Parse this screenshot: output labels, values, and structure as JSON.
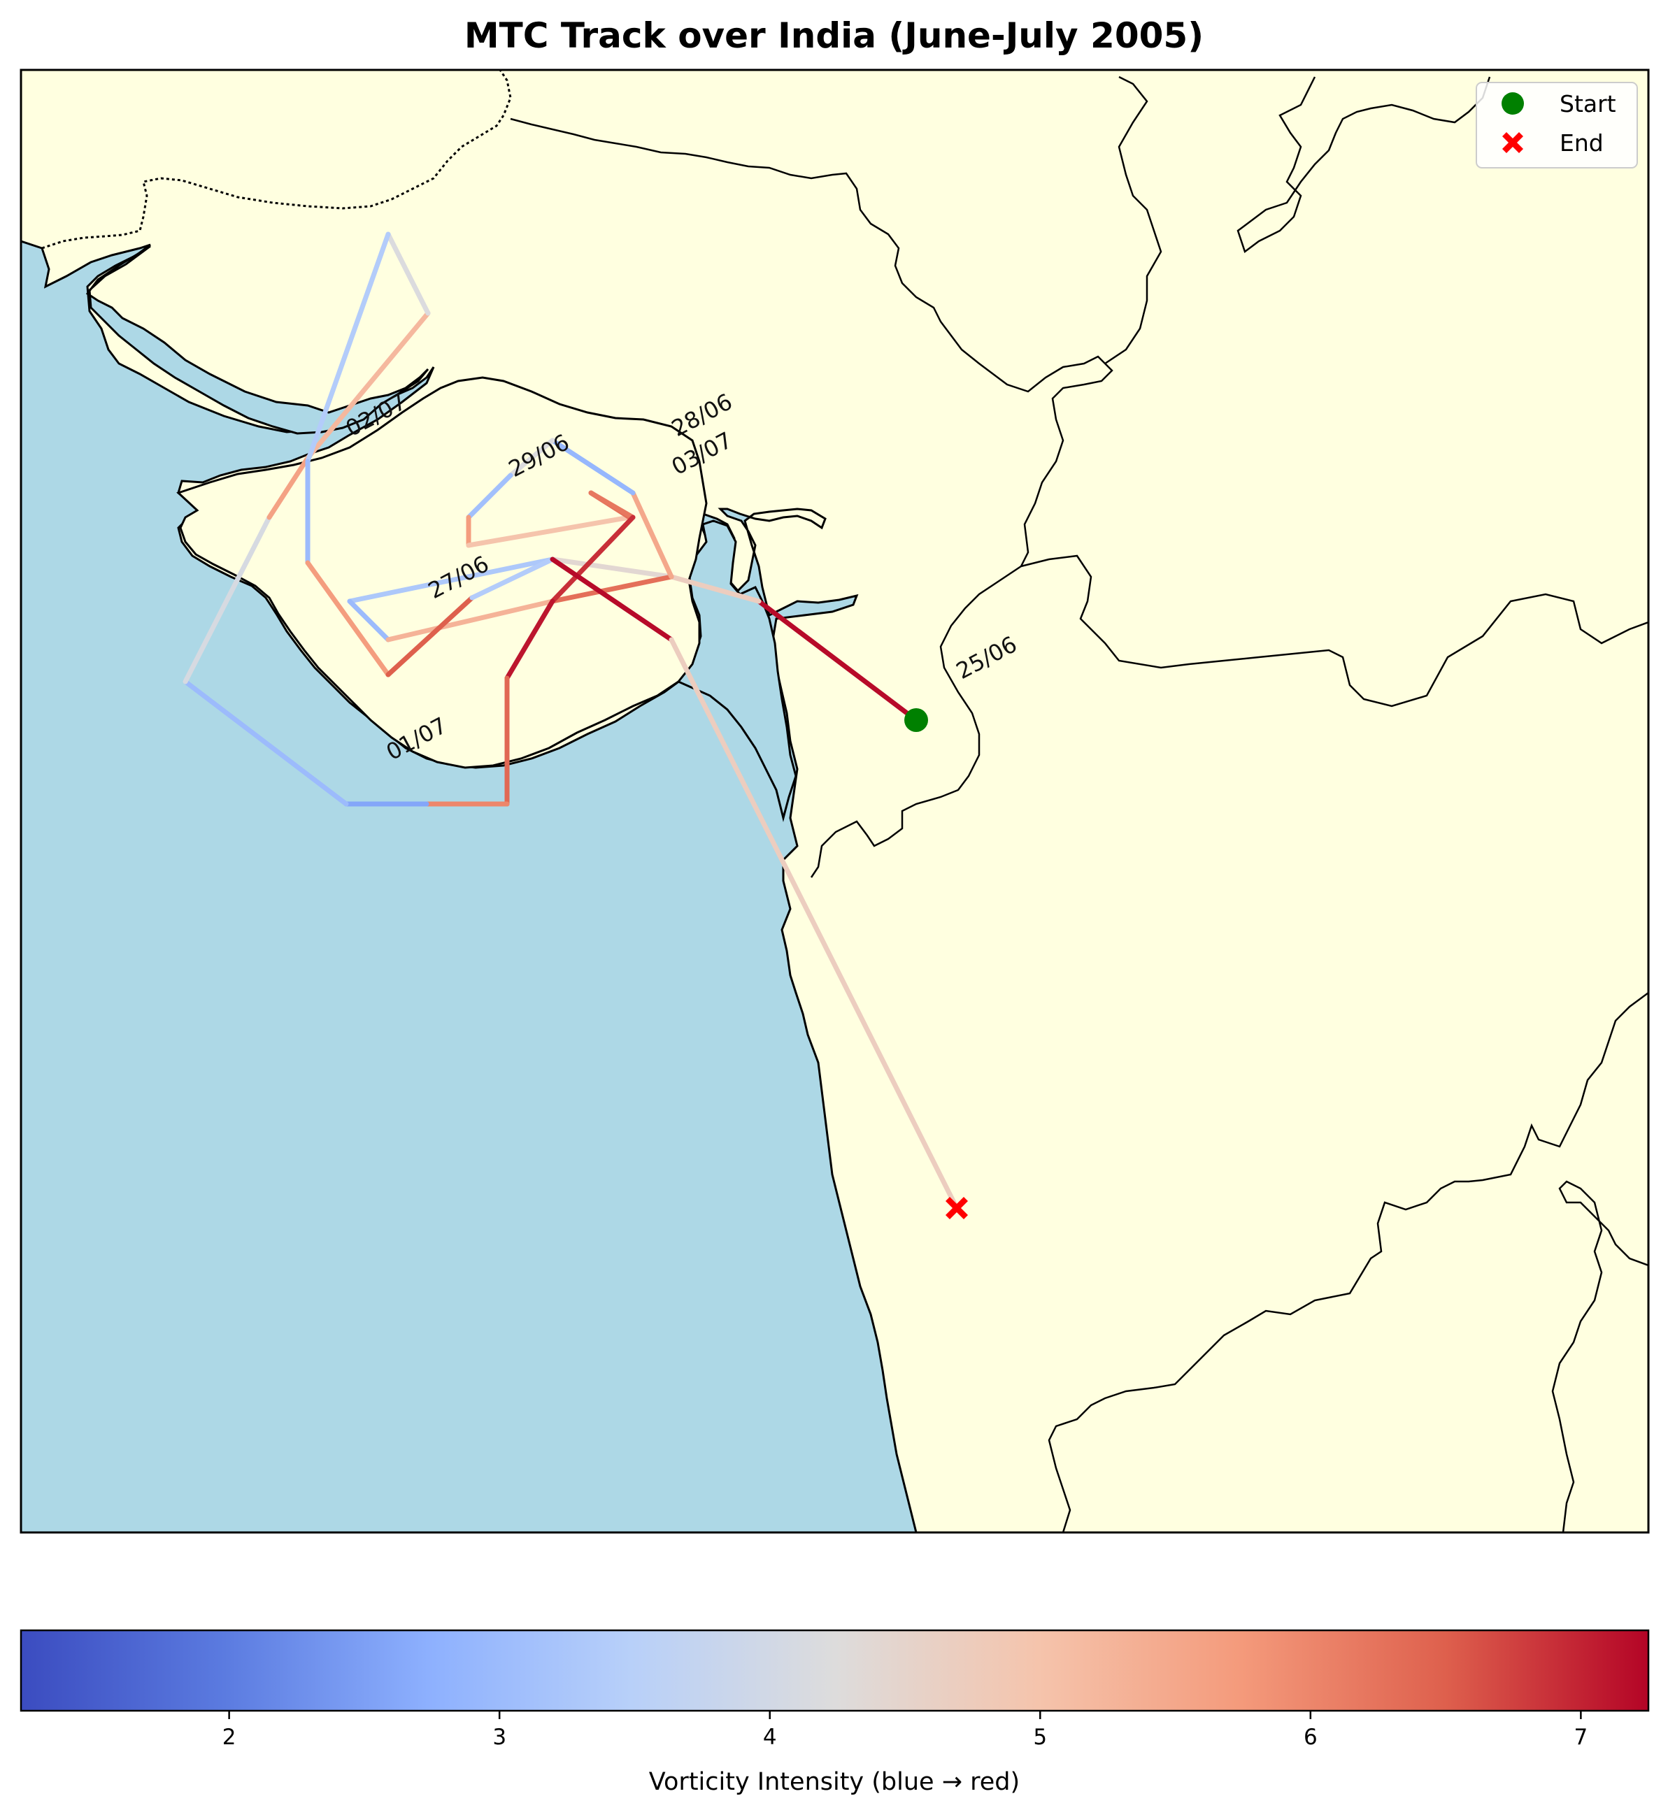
{
  "title": "MTC Track over India (June-July 2005)",
  "legend": {
    "start_label": "Start",
    "end_label": "End",
    "start_color": "#008000",
    "end_color": "#ff0000"
  },
  "map": {
    "ocean_color": "#add8e6",
    "land_color": "#ffffe0"
  },
  "date_labels": [
    "25/06",
    "27/06",
    "28/06",
    "29/06",
    "01/07",
    "02/07",
    "03/07"
  ],
  "colorbar": {
    "label": "Vorticity Intensity (blue → red)",
    "colormap": "coolwarm",
    "min": 1.23,
    "max": 7.25,
    "ticks": [
      "2",
      "3",
      "4",
      "5",
      "6",
      "7"
    ]
  },
  "chart_data": {
    "type": "line",
    "description_of_encoding": "track colored by vorticity intensity",
    "segments_vorticity": [
      7.2,
      4.7,
      4.4,
      3.3,
      3.0,
      5.3,
      6.3,
      5.5,
      2.9,
      4.2,
      3.1,
      5.7,
      5.0,
      6.3,
      6.2,
      6.9,
      7.1,
      6.4,
      6.0,
      2.6,
      3.0,
      4.1,
      5.6,
      5.2,
      4.2,
      3.4,
      3.0,
      5.7,
      6.5,
      3.4
    ],
    "start_vorticity": 7.2,
    "end_vorticity": 3.4
  }
}
